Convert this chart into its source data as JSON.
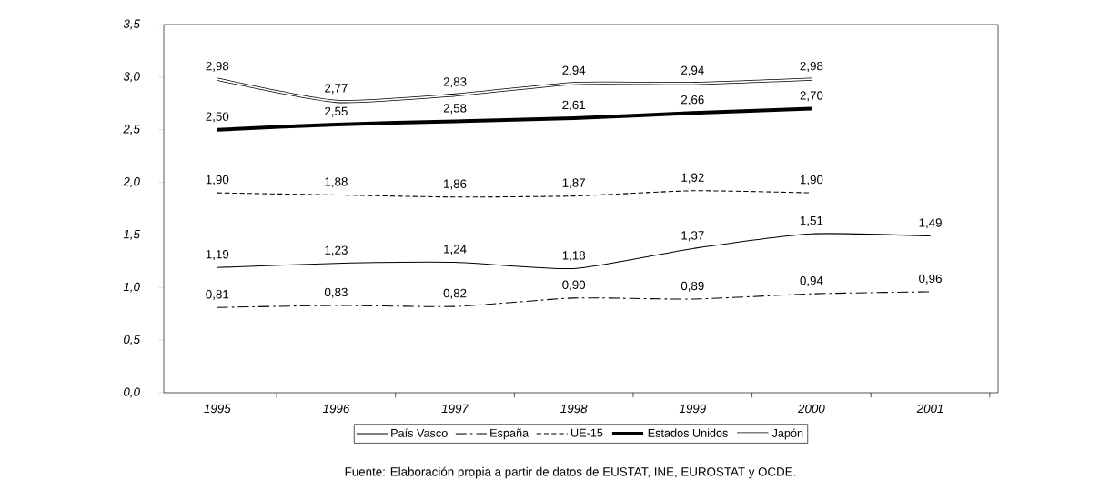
{
  "chart_data": {
    "type": "line",
    "categories": [
      "1995",
      "1996",
      "1997",
      "1998",
      "1999",
      "2000",
      "2001"
    ],
    "series": [
      {
        "name": "País Vasco",
        "color": "#000000",
        "line_style": "solid",
        "values": [
          1.19,
          1.23,
          1.24,
          1.18,
          1.37,
          1.51,
          1.49
        ],
        "value_labels": [
          "1,19",
          "1,23",
          "1,24",
          "1,18",
          "1,37",
          "1,51",
          "1,49"
        ]
      },
      {
        "name": "España",
        "color": "#000000",
        "line_style": "dashdot",
        "values": [
          0.81,
          0.83,
          0.82,
          0.9,
          0.89,
          0.94,
          0.96
        ],
        "value_labels": [
          "0,81",
          "0,83",
          "0,82",
          "0,90",
          "0,89",
          "0,94",
          "0,96"
        ]
      },
      {
        "name": "UE-15",
        "color": "#000000",
        "line_style": "dashed",
        "values": [
          1.9,
          1.88,
          1.86,
          1.87,
          1.92,
          1.9,
          null
        ],
        "value_labels": [
          "1,90",
          "1,88",
          "1,86",
          "1,87",
          "1,92",
          "1,90",
          null
        ]
      },
      {
        "name": "Estados Unidos",
        "color": "#000000",
        "line_style": "solid",
        "values": [
          2.5,
          2.55,
          2.58,
          2.61,
          2.66,
          2.7,
          null
        ],
        "value_labels": [
          "2,50",
          "2,55",
          "2,58",
          "2,61",
          "2,66",
          "2,70",
          null
        ]
      },
      {
        "name": "Japón",
        "color": "#000000",
        "line_style": "solid",
        "values": [
          2.98,
          2.77,
          2.83,
          2.94,
          2.94,
          2.98,
          null
        ],
        "value_labels": [
          "2,98",
          "2,77",
          "2,83",
          "2,94",
          "2,94",
          "2,98",
          null
        ]
      }
    ],
    "ylim": [
      0,
      3.5
    ],
    "yticks": [
      {
        "value": 0,
        "label": "0,0"
      },
      {
        "value": 0.5,
        "label": "0,5"
      },
      {
        "value": 1,
        "label": "1,0"
      },
      {
        "value": 1.5,
        "label": "1,5"
      },
      {
        "value": 2,
        "label": "2,0"
      },
      {
        "value": 2.5,
        "label": "2,5"
      },
      {
        "value": 3,
        "label": "3,0"
      },
      {
        "value": 3.5,
        "label": "3,5"
      }
    ],
    "grid": false,
    "legend": "bottom",
    "marker": "none",
    "annotations": [
      "Fuente: Elaboración propia a partir de datos de EUSTAT, INE, EUROSTAT y OCDE."
    ]
  }
}
